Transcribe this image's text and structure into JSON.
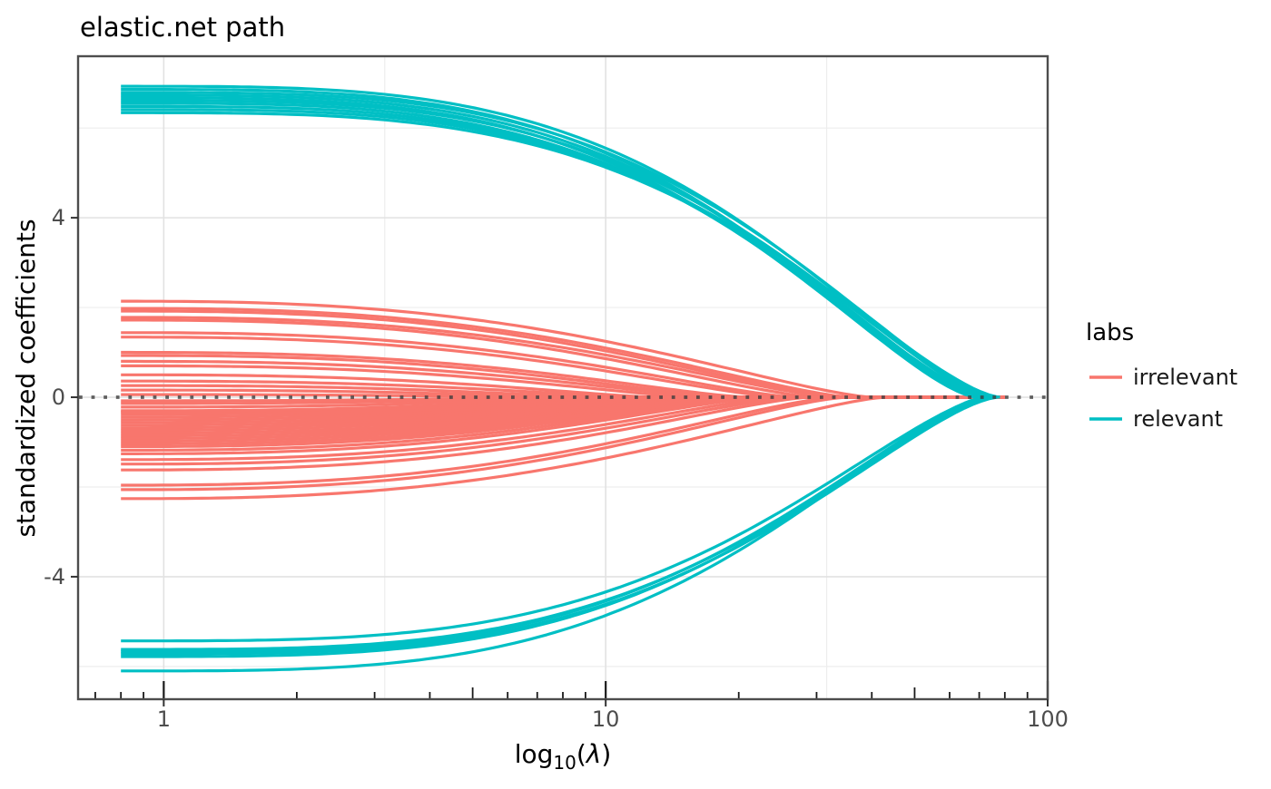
{
  "chart_data": {
    "type": "line",
    "title": "elastic.net path",
    "ylabel": "standardized coefficients",
    "xlabel_parts": {
      "func": "log",
      "sub": "10",
      "open": "(",
      "lambda": "λ",
      "close": ")"
    },
    "x_scale": "log10",
    "xlim": [
      0.64,
      100
    ],
    "ylim": [
      -6.73,
      7.6
    ],
    "x_ticks": [
      {
        "value": 1,
        "label": "1"
      },
      {
        "value": 10,
        "label": "10"
      },
      {
        "value": 100,
        "label": "100"
      }
    ],
    "x_minor_gridlines": [
      3.1623,
      31.623
    ],
    "y_ticks": [
      {
        "value": 4,
        "label": "4"
      },
      {
        "value": 0,
        "label": "0"
      },
      {
        "value": -4,
        "label": "-4"
      }
    ],
    "y_minor_gridlines": [
      -6,
      -2,
      2,
      6
    ],
    "log_ticks": {
      "sides": "bottom",
      "long": 20,
      "mid": 13,
      "short": 8
    },
    "grid": true,
    "reference_line": {
      "y": 0,
      "style": "dotted",
      "color": "#3c3c3c"
    },
    "x_data_range": [
      0.8,
      80
    ],
    "n_lines": {
      "relevant": 16,
      "irrelevant": 42
    },
    "series_format": [
      "start_coefficient_at_lambda_0.8",
      "lambda_where_coefficient_reaches_0"
    ],
    "groups": {
      "irrelevant": {
        "color": "#F8766D",
        "extend_zero_to_end": true,
        "shape": {
          "a": 2.6,
          "b": 1.4
        }
      },
      "relevant": {
        "color": "#00BFC4",
        "extend_zero_to_end": false,
        "shape": {
          "a": 3.4,
          "b": 1.5
        }
      }
    },
    "series": {
      "relevant": [
        [
          6.93,
          74
        ],
        [
          6.86,
          70
        ],
        [
          6.79,
          76
        ],
        [
          6.73,
          72
        ],
        [
          6.67,
          69
        ],
        [
          6.61,
          75
        ],
        [
          6.55,
          71
        ],
        [
          6.48,
          73
        ],
        [
          6.41,
          77
        ],
        [
          6.34,
          78
        ],
        [
          -5.43,
          73
        ],
        [
          -5.62,
          76
        ],
        [
          -5.67,
          74
        ],
        [
          -5.72,
          77
        ],
        [
          -5.78,
          75
        ],
        [
          -6.1,
          72
        ]
      ],
      "irrelevant": [
        [
          2.14,
          40
        ],
        [
          1.98,
          36
        ],
        [
          1.92,
          34
        ],
        [
          1.78,
          33
        ],
        [
          1.72,
          30
        ],
        [
          1.44,
          27
        ],
        [
          1.34,
          25
        ],
        [
          1.0,
          21
        ],
        [
          0.93,
          19
        ],
        [
          0.8,
          18
        ],
        [
          0.7,
          16
        ],
        [
          0.5,
          13
        ],
        [
          0.36,
          12
        ],
        [
          0.26,
          10
        ],
        [
          0.16,
          9
        ],
        [
          0.06,
          8
        ],
        [
          -0.08,
          8.5
        ],
        [
          -0.14,
          9
        ],
        [
          -0.22,
          10
        ],
        [
          -0.3,
          11
        ],
        [
          -0.33,
          11.5
        ],
        [
          -0.38,
          12
        ],
        [
          -0.44,
          12.5
        ],
        [
          -0.5,
          13
        ],
        [
          -0.56,
          14
        ],
        [
          -0.62,
          14.5
        ],
        [
          -0.68,
          15
        ],
        [
          -0.74,
          16
        ],
        [
          -0.8,
          17
        ],
        [
          -0.86,
          17.5
        ],
        [
          -0.92,
          18
        ],
        [
          -0.98,
          19
        ],
        [
          -1.04,
          20
        ],
        [
          -1.1,
          21
        ],
        [
          -1.18,
          22
        ],
        [
          -1.26,
          23
        ],
        [
          -1.39,
          25
        ],
        [
          -1.49,
          27
        ],
        [
          -1.62,
          29
        ],
        [
          -1.96,
          33
        ],
        [
          -2.06,
          35
        ],
        [
          -2.26,
          43
        ]
      ]
    },
    "legend": {
      "title": "labs",
      "position": "right",
      "entries": [
        {
          "label": "irrelevant",
          "color": "#F8766D"
        },
        {
          "label": "relevant",
          "color": "#00BFC4"
        }
      ]
    }
  },
  "style_colors": {
    "panel_border": "#4d4d4d",
    "grid_major": "#e2e2e2",
    "grid_minor": "#ededed",
    "tick_mark": "#333333",
    "log_tick": "#1a1a1a"
  }
}
